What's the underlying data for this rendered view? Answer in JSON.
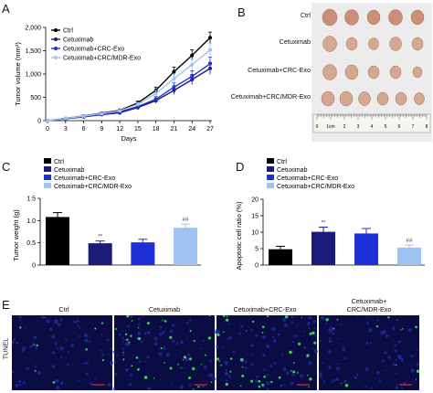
{
  "panels": {
    "A": "A",
    "B": "B",
    "C": "C",
    "D": "D",
    "E": "E"
  },
  "colors": {
    "ctrl": "#000000",
    "cetuximab": "#1b1b7a",
    "crc_exo": "#1f2fd6",
    "crc_mdr_exo": "#9ec3f0",
    "scalebar": "#e03030"
  },
  "chart_data": [
    {
      "type": "line",
      "panel": "A",
      "xlabel": "Days",
      "ylabel": "Tumor volume (mm³)",
      "x": [
        0,
        3,
        6,
        9,
        12,
        15,
        18,
        21,
        24,
        27
      ],
      "xticks": [
        "0",
        "3",
        "6",
        "9",
        "12",
        "15",
        "18",
        "21",
        "24",
        "27"
      ],
      "yticks": [
        "0",
        "500",
        "1,000",
        "1,500",
        "2,000"
      ],
      "ylim": [
        0,
        2000
      ],
      "legend": "top-left",
      "series": [
        {
          "name": "Ctrl",
          "values": [
            0,
            50,
            100,
            160,
            220,
            380,
            650,
            1050,
            1400,
            1780
          ],
          "err": [
            0,
            10,
            15,
            20,
            30,
            40,
            70,
            100,
            120,
            120
          ]
        },
        {
          "name": "Cetuximab",
          "values": [
            0,
            40,
            80,
            130,
            170,
            280,
            430,
            650,
            880,
            1120
          ],
          "err": [
            0,
            10,
            15,
            20,
            30,
            40,
            60,
            90,
            110,
            130
          ]
        },
        {
          "name": "Cetuximab+CRC-Exo",
          "values": [
            0,
            45,
            90,
            140,
            190,
            300,
            460,
            720,
            950,
            1220
          ],
          "err": [
            0,
            10,
            15,
            20,
            30,
            40,
            60,
            90,
            120,
            140
          ]
        },
        {
          "name": "Cetuximab+CRC/MDR-Exo",
          "values": [
            0,
            50,
            95,
            150,
            210,
            350,
            580,
            900,
            1200,
            1520
          ],
          "err": [
            0,
            10,
            15,
            20,
            30,
            40,
            70,
            100,
            120,
            130
          ]
        }
      ]
    },
    {
      "type": "bar",
      "panel": "C",
      "ylabel": "Tumor weight (g)",
      "categories": [
        "Ctrl",
        "Cetuximab",
        "Cetuximab+CRC-Exo",
        "Cetuximab+CRC/MDR-Exo"
      ],
      "values": [
        1.08,
        0.49,
        0.51,
        0.84
      ],
      "err": [
        0.1,
        0.05,
        0.07,
        0.08
      ],
      "annotations": [
        "",
        "**",
        "",
        "##"
      ],
      "yticks": [
        "0",
        "0.5",
        "1.0",
        "1.5"
      ],
      "ylim": [
        0,
        1.5
      ],
      "legend": "top"
    },
    {
      "type": "bar",
      "panel": "D",
      "ylabel": "Apoptotic cell ratio (%)",
      "categories": [
        "Ctrl",
        "Cetuximab",
        "Cetuximab+CRC-Exo",
        "Cetuximab+CRC/MDR-Exo"
      ],
      "values": [
        4.8,
        10.1,
        9.6,
        5.3
      ],
      "err": [
        0.9,
        1.4,
        1.5,
        0.8
      ],
      "annotations": [
        "",
        "**",
        "",
        "##"
      ],
      "yticks": [
        "0",
        "5",
        "10",
        "15",
        "20"
      ],
      "ylim": [
        0,
        20
      ],
      "legend": "top"
    }
  ],
  "panel_b": {
    "rows": [
      "Ctrl",
      "Cetuximab",
      "Cetuximab+CRC-Exo",
      "Cetuximab+CRC/MDR-Exo"
    ],
    "tumors_per_row": [
      5,
      5,
      5,
      6
    ],
    "ruler_labels": [
      "0",
      "1cm",
      "2",
      "3",
      "4",
      "5",
      "6",
      "7",
      "8"
    ]
  },
  "panel_e": {
    "side_label": "TUNEL",
    "titles": [
      "Ctrl",
      "Cetuximab",
      "Cetuximab+CRC-Exo",
      "Cetuximab+\nCRC/MDR-Exo"
    ],
    "title_line1": "Cetuximab+",
    "title_line2": "CRC/MDR-Exo"
  }
}
